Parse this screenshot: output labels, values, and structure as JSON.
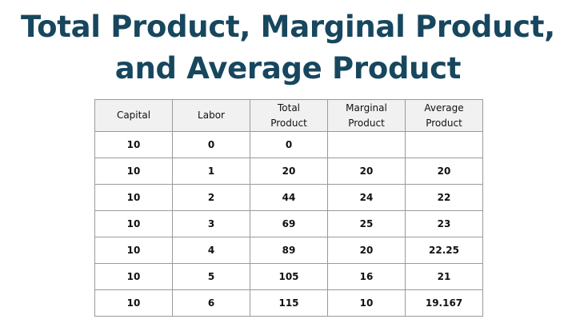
{
  "title": {
    "line1": "Total Product, Marginal Product,",
    "line2": "and Average Product"
  },
  "table": {
    "headers": [
      [
        "Capital"
      ],
      [
        "Labor"
      ],
      [
        "Total",
        "Product"
      ],
      [
        "Marginal",
        "Product"
      ],
      [
        "Average",
        "Product"
      ]
    ],
    "rows": [
      [
        "10",
        "0",
        "0",
        "",
        ""
      ],
      [
        "10",
        "1",
        "20",
        "20",
        "20"
      ],
      [
        "10",
        "2",
        "44",
        "24",
        "22"
      ],
      [
        "10",
        "3",
        "69",
        "25",
        "23"
      ],
      [
        "10",
        "4",
        "89",
        "20",
        "22.25"
      ],
      [
        "10",
        "5",
        "105",
        "16",
        "21"
      ],
      [
        "10",
        "6",
        "115",
        "10",
        "19.167"
      ]
    ]
  },
  "colors": {
    "title": "#17475e",
    "header_background": "#f1f1f1",
    "grid": "#9a9a9a"
  }
}
